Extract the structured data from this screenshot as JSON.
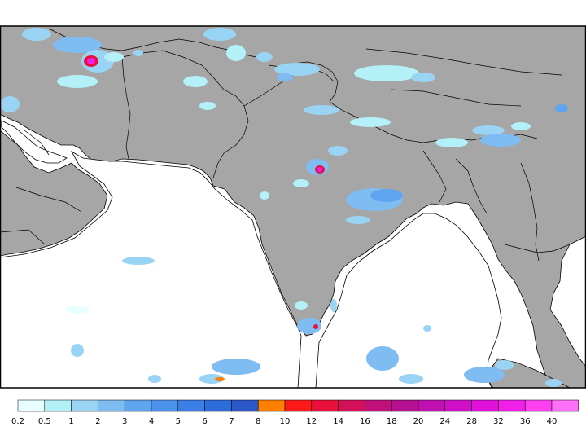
{
  "map": {
    "colors": {
      "land": "#a6a6a6",
      "ocean": "#ffffff",
      "border": "#000000"
    },
    "legend": {
      "labels": [
        "0.2",
        "0.5",
        "1",
        "2",
        "3",
        "4",
        "5",
        "6",
        "7",
        "8",
        "10",
        "12",
        "14",
        "16",
        "18",
        "20",
        "24",
        "28",
        "32",
        "36",
        "40"
      ],
      "colors": [
        "#e8ffff",
        "#b3f0f8",
        "#9ad4f4",
        "#7ebcf2",
        "#5fa4ee",
        "#4a92ec",
        "#3a7ee6",
        "#2e6bdb",
        "#2a58c8",
        "#ff7f00",
        "#ff1a1a",
        "#e8103a",
        "#d4105a",
        "#c0107a",
        "#b41090",
        "#c010b0",
        "#d010c8",
        "#e010d8",
        "#f020e8",
        "#ff40f0",
        "#ff70f8"
      ]
    }
  }
}
